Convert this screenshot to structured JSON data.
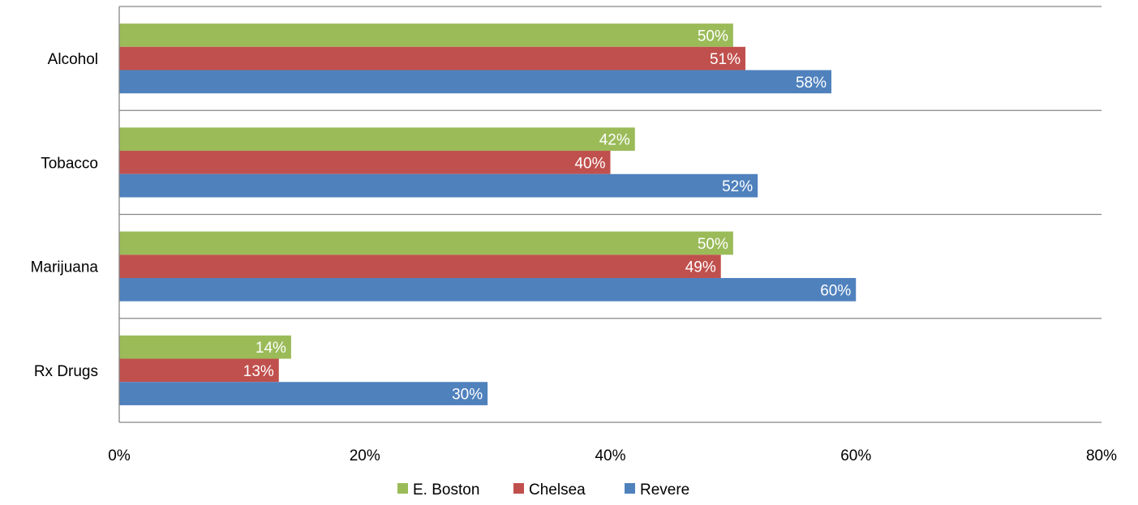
{
  "chart_data": {
    "type": "bar",
    "orientation": "horizontal",
    "categories": [
      "Alcohol",
      "Tobacco",
      "Marijuana",
      "Rx Drugs"
    ],
    "series": [
      {
        "name": "E. Boston",
        "color": "#9bbb59",
        "values": [
          50,
          42,
          50,
          14
        ],
        "labels": [
          "50%",
          "42%",
          "50%",
          "14%"
        ]
      },
      {
        "name": "Chelsea",
        "color": "#c0504d",
        "values": [
          51,
          40,
          49,
          13
        ],
        "labels": [
          "51%",
          "40%",
          "49%",
          "13%"
        ]
      },
      {
        "name": "Revere",
        "color": "#4f81bd",
        "values": [
          58,
          52,
          60,
          30
        ],
        "labels": [
          "58%",
          "52%",
          "60%",
          "30%"
        ]
      }
    ],
    "xlim": [
      0,
      80
    ],
    "x_ticks": [
      0,
      20,
      40,
      60,
      80
    ],
    "x_tick_labels": [
      "0%",
      "20%",
      "40%",
      "60%",
      "80%"
    ],
    "grid": "horizontal category separators",
    "legend_position": "bottom",
    "data_labels": "inside-end",
    "data_label_color": "#ffffff"
  }
}
